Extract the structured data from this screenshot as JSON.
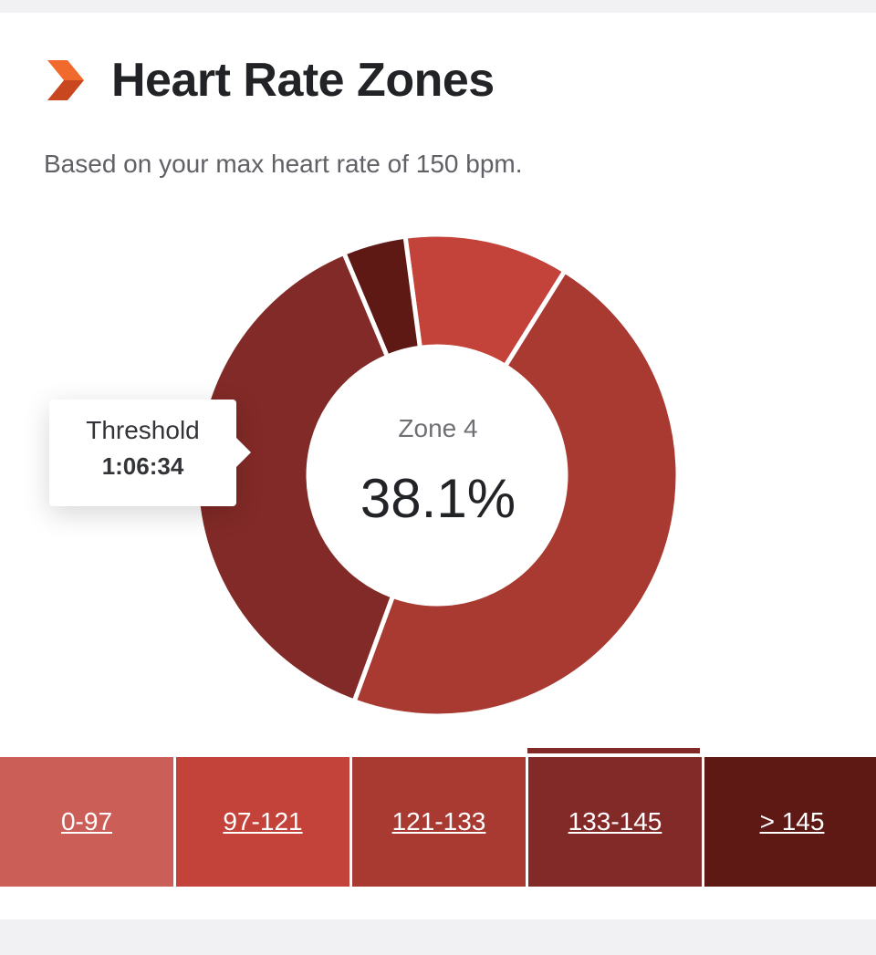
{
  "header": {
    "title": "Heart Rate Zones",
    "subtitle": "Based on your max heart rate of 150 bpm.",
    "accent_color": "#e8562a",
    "icon": "chevron-right-icon"
  },
  "center": {
    "zone_label": "Zone 4",
    "percent_label": "38.1%"
  },
  "tooltip": {
    "name": "Threshold",
    "time": "1:06:34"
  },
  "zones": [
    {
      "range": "0-97",
      "color": "#cc5e58"
    },
    {
      "range": "97-121",
      "color": "#c3433a"
    },
    {
      "range": "121-133",
      "color": "#a93a32"
    },
    {
      "range": "133-145",
      "color": "#822a27",
      "selected": true
    },
    {
      "range": "> 145",
      "color": "#5e1915"
    }
  ],
  "chart_data": {
    "type": "pie",
    "categories": [
      "0-97",
      "97-121",
      "121-133",
      "133-145",
      "> 145"
    ],
    "values": [
      0.0,
      11.0,
      46.7,
      38.1,
      4.2
    ],
    "colors": [
      "#cc5e58",
      "#c3433a",
      "#a93a32",
      "#822a27",
      "#5e1915"
    ],
    "selected": "133-145",
    "donut": true
  }
}
